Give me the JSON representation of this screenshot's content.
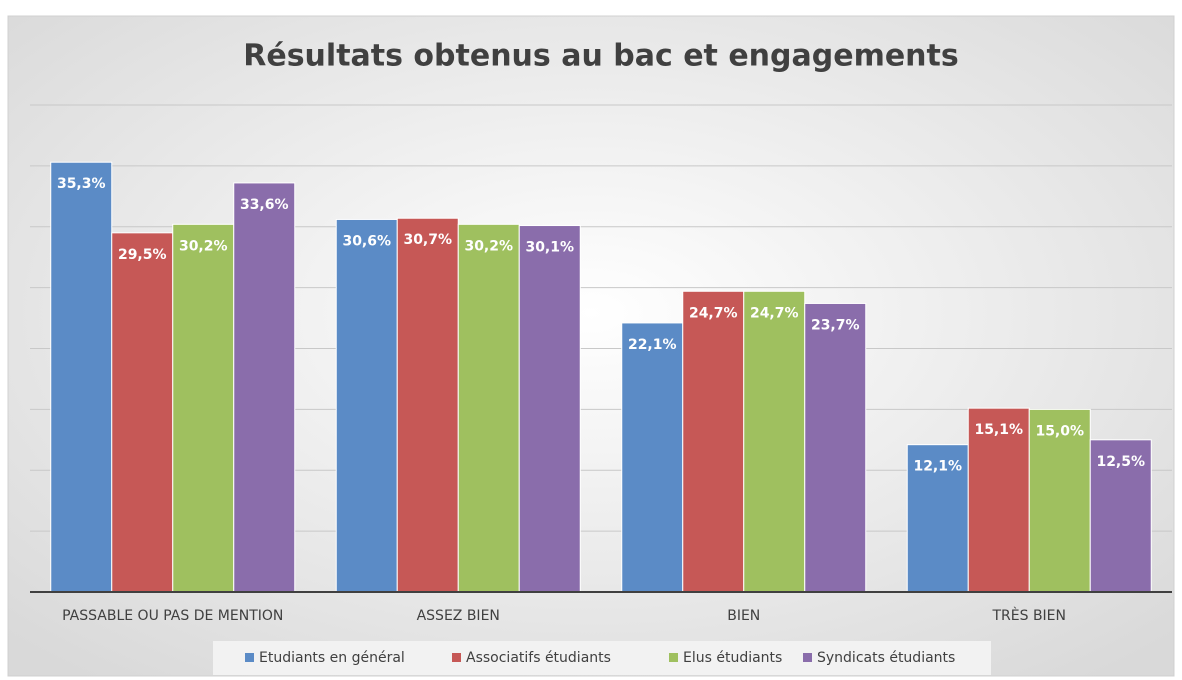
{
  "chart_data": {
    "type": "bar",
    "title": "Résultats obtenus au bac et engagements",
    "categories": [
      "PASSABLE OU PAS DE MENTION",
      "ASSEZ BIEN",
      "BIEN",
      "TRÈS BIEN"
    ],
    "series": [
      {
        "name": "Etudiants en général",
        "color": "#5b8bc6",
        "values": [
          35.3,
          30.6,
          22.1,
          12.1
        ],
        "value_labels": [
          "35,3%",
          "30,6%",
          "22,1%",
          "12,1%"
        ]
      },
      {
        "name": "Associatifs étudiants",
        "color": "#c65856",
        "values": [
          29.5,
          30.7,
          24.7,
          15.1
        ],
        "value_labels": [
          "29,5%",
          "30,7%",
          "24,7%",
          "15,1%"
        ]
      },
      {
        "name": "Elus étudiants",
        "color": "#9fc05f",
        "values": [
          30.2,
          30.2,
          24.7,
          15.0
        ],
        "value_labels": [
          "30,2%",
          "30,2%",
          "24,7%",
          "15,0%"
        ]
      },
      {
        "name": "Syndicats étudiants",
        "color": "#8a6dab",
        "values": [
          33.6,
          30.1,
          23.7,
          12.5
        ],
        "value_labels": [
          "33,6%",
          "30,1%",
          "23,7%",
          "12,5%"
        ]
      }
    ],
    "ylim": [
      0,
      40
    ],
    "yticks": [
      0,
      5,
      10,
      15,
      20,
      25,
      30,
      35,
      40
    ],
    "grid": true,
    "legend": "bottom"
  }
}
